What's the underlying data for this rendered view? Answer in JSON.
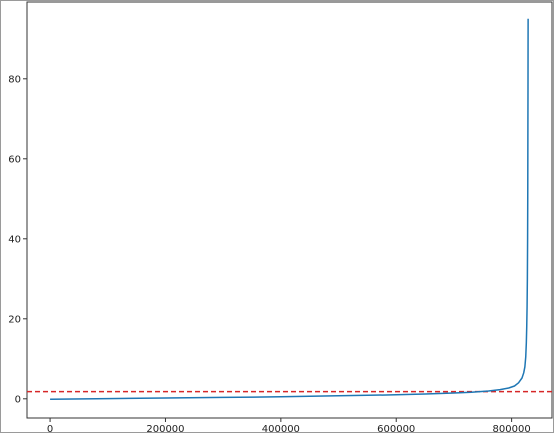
{
  "chart_data": {
    "type": "line",
    "title": "",
    "xlabel": "",
    "ylabel": "",
    "xlim": [
      -40000,
      870000
    ],
    "ylim": [
      -4.8,
      99.2
    ],
    "x_ticks": [
      0,
      200000,
      400000,
      600000,
      800000
    ],
    "x_tick_labels": [
      "0",
      "200000",
      "400000",
      "600000",
      "800000"
    ],
    "y_ticks": [
      0,
      20,
      40,
      60,
      80
    ],
    "y_tick_labels": [
      "0",
      "20",
      "40",
      "60",
      "80"
    ],
    "grid": false,
    "series": [
      {
        "color": "#1f77b4",
        "x": [
          0,
          100000,
          200000,
          300000,
          400000,
          500000,
          600000,
          650000,
          700000,
          730000,
          760000,
          780000,
          795000,
          805000,
          812000,
          818000,
          821000,
          823000,
          824500,
          825500,
          826200,
          826800,
          827300,
          827700,
          828000,
          828200,
          828400,
          828500,
          828600
        ],
        "y": [
          -0.1,
          0.05,
          0.2,
          0.35,
          0.5,
          0.75,
          1.0,
          1.2,
          1.45,
          1.65,
          1.95,
          2.3,
          2.7,
          3.2,
          4.0,
          5.2,
          6.5,
          8.0,
          10.5,
          14.0,
          18.0,
          23.0,
          30.0,
          40.0,
          52.0,
          65.0,
          78.0,
          88.0,
          95.0
        ]
      }
    ],
    "hlines": [
      {
        "y": 1.8,
        "color": "#d62728",
        "style": "dashed"
      }
    ]
  }
}
